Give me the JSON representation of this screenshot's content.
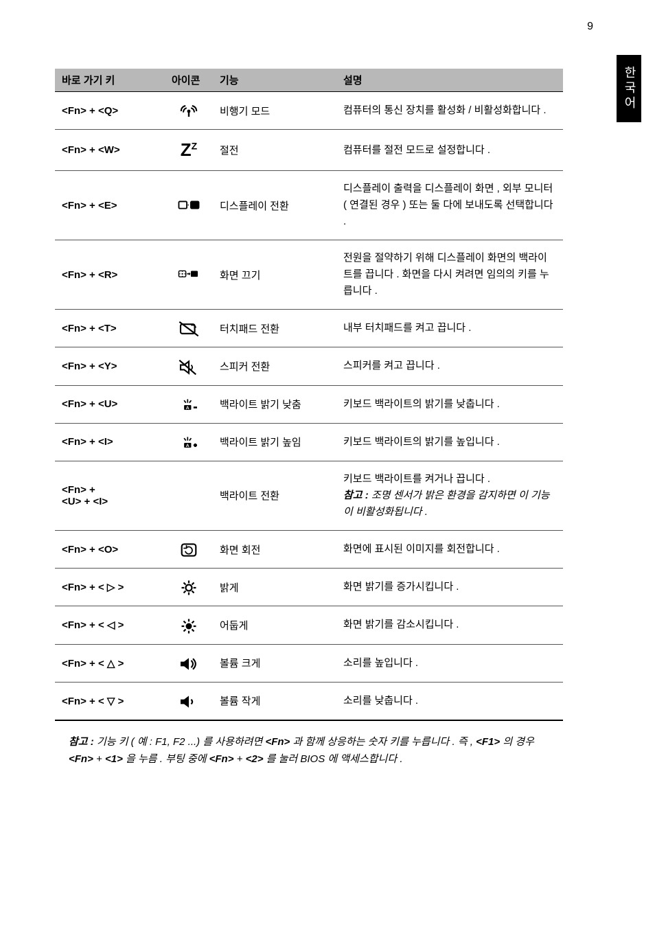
{
  "page_number": "9",
  "side_tab": "한국어",
  "headers": {
    "key": "바로 가기 키",
    "icon": "아이콘",
    "func": "기능",
    "desc": "설명"
  },
  "rows": [
    {
      "key": "<Fn> + <Q>",
      "icon": "signal",
      "func": "비행기 모드",
      "desc": "컴퓨터의 통신 장치를 활성화 / 비활성화합니다 ."
    },
    {
      "key": "<Fn> + <W>",
      "icon": "zz",
      "func": "절전",
      "desc": "컴퓨터를 절전 모드로 설정합니다 ."
    },
    {
      "key": "<Fn> + <E>",
      "icon": "display-switch",
      "func": "디스플레이 전환",
      "desc": "디스플레이 출력을 디스플레이 화면 , 외부 모니터 ( 연결된 경우 ) 또는 둘 다에 보내도록 선택합니다 ."
    },
    {
      "key": "<Fn> + <R>",
      "icon": "screen-off",
      "func": "화면 끄기",
      "desc": "전원을 절약하기 위해 디스플레이 화면의 백라이트를 끕니다 . 화면을 다시 켜려면 임의의 키를 누릅니다 ."
    },
    {
      "key": "<Fn> + <T>",
      "icon": "touchpad",
      "func": "터치패드 전환",
      "desc": "내부 터치패드를 켜고 끕니다 ."
    },
    {
      "key": "<Fn> + <Y>",
      "icon": "speaker-mute",
      "func": "스피커 전환",
      "desc": "스피커를 켜고 끕니다 ."
    },
    {
      "key": "<Fn> + <U>",
      "icon": "kb-backlight-down",
      "func": "백라이트 밝기 낮춤",
      "desc": "키보드 백라이트의 밝기를 낮춥니다 ."
    },
    {
      "key": "<Fn> + <I>",
      "icon": "kb-backlight-up",
      "func": "백라이트 밝기 높임",
      "desc": "키보드 백라이트의 밝기를 높입니다 ."
    },
    {
      "key": "<Fn> + <U> + <I>",
      "icon": "",
      "func": "백라이트 전환",
      "desc_main": "키보드 백라이트를 켜거나 끕니다 .",
      "note_label": "참고 : ",
      "note_text": "조명 센서가 밝은 환경을 감지하면 이 기능이 비활성화됩니다 ."
    },
    {
      "key": "<Fn> + <O>",
      "icon": "rotate",
      "func": "화면 회전",
      "desc": "화면에 표시된 이미지를 회전합니다 ."
    },
    {
      "key": "<Fn> + < ▷ >",
      "icon": "bright-up",
      "func": "밝게",
      "desc": "화면 밝기를 증가시킵니다 ."
    },
    {
      "key": "<Fn> + < ◁ >",
      "icon": "bright-down",
      "func": "어둡게",
      "desc": "화면 밝기를 감소시킵니다 ."
    },
    {
      "key": "<Fn> + < △ >",
      "icon": "vol-up",
      "func": "볼륨 크게",
      "desc": "소리를 높입니다 ."
    },
    {
      "key": "<Fn> + < ▽ >",
      "icon": "vol-down",
      "func": "볼륨 작게",
      "desc": "소리를 낮춥니다 ."
    }
  ],
  "footer": {
    "note_label": "참고 : ",
    "part1": "기능 키 ( 예 : F1, F2 ...) 를 사용하려면 ",
    "b1": "<Fn>",
    "part2": " 과 함께 상응하는 숫자 키를 누릅니다 . 즉 , ",
    "b2": "<F1>",
    "part3": " 의 경우 ",
    "b3": "<Fn>",
    "part4": " + ",
    "b4": "<1>",
    "part5": " 을 누름 . 부팅 중에 ",
    "b5": "<Fn>",
    "part6": " + ",
    "b6": "<2>",
    "part7": " 를 눌러 BIOS 에 액세스합니다 ."
  }
}
